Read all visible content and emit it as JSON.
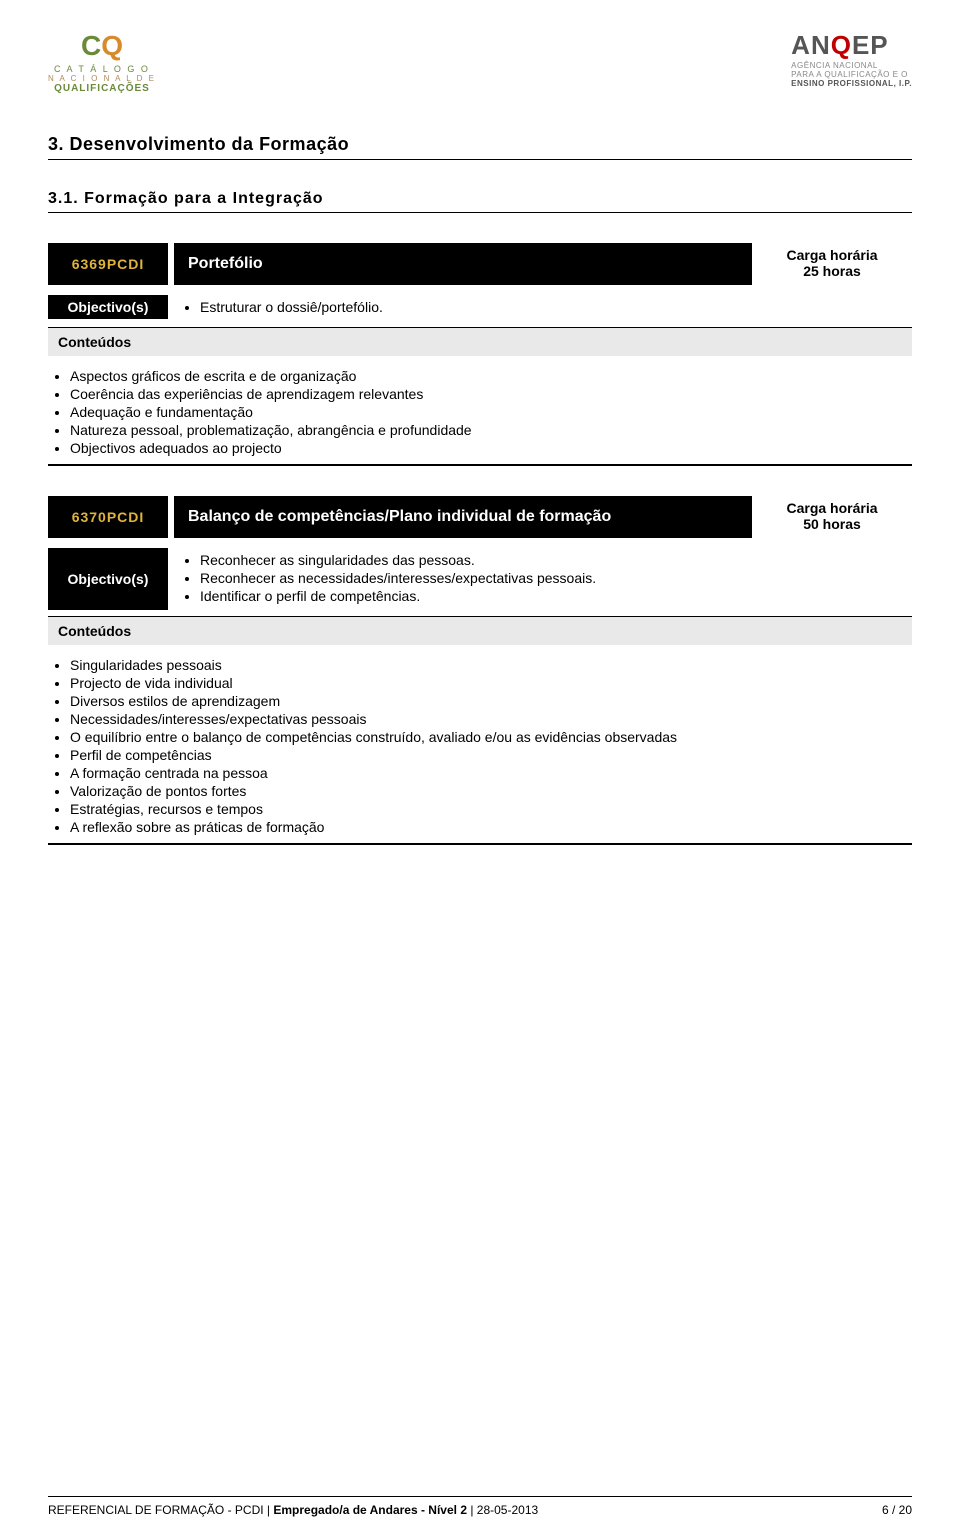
{
  "logos": {
    "left": {
      "glyph_c": "C",
      "glyph_q": "Q",
      "line1": "C A T Á L O G O",
      "line2": "N A C I O N A L   D E",
      "line3": "QUALIFICAÇÕES"
    },
    "right": {
      "brand_pre": "AN",
      "brand_mid": "Q",
      "brand_post": "EP",
      "sub1": "AGÊNCIA NACIONAL",
      "sub2": "PARA A QUALIFICAÇÃO E O",
      "sub3": "ENSINO PROFISSIONAL, I.P."
    }
  },
  "section": {
    "heading": "3. Desenvolvimento da Formação",
    "subheading": "3.1. Formação para a Integração"
  },
  "labels": {
    "objectivos": "Objectivo(s)",
    "conteudos": "Conteúdos",
    "carga": "Carga horária"
  },
  "modules": [
    {
      "code": "6369PCDI",
      "title": "Portefólio",
      "hours": "25 horas",
      "objectives": [
        "Estruturar o dossiê/portefólio."
      ],
      "contents": [
        "Aspectos gráficos de escrita e de organização",
        "Coerência das experiências de aprendizagem relevantes",
        "Adequação e fundamentação",
        "Natureza pessoal, problematização, abrangência e profundidade",
        "Objectivos adequados ao projecto"
      ]
    },
    {
      "code": "6370PCDI",
      "title": "Balanço de competências/Plano individual de formação",
      "hours": "50 horas",
      "objectives": [
        "Reconhecer as singularidades das pessoas.",
        "Reconhecer as necessidades/interesses/expectativas pessoais.",
        "Identificar o perfil de competências."
      ],
      "contents": [
        "Singularidades pessoais",
        "Projecto de vida individual",
        "Diversos estilos de aprendizagem",
        "Necessidades/interesses/expectativas pessoais",
        "O equilíbrio entre o balanço de competências construído, avaliado e/ou as evidências observadas",
        "Perfil de competências",
        "A formação centrada na pessoa",
        "Valorização de pontos fortes",
        "Estratégias, recursos e tempos",
        "A reflexão sobre as práticas de formação"
      ]
    }
  ],
  "footer": {
    "prefix": "REFERENCIAL DE FORMAÇÃO - PCDI | ",
    "bold": "Empregado/a de Andares - Nível 2",
    "suffix": " | 28-05-2013",
    "page": "6 / 20"
  },
  "colors": {
    "accent_code": "#e0b43a",
    "header_bg": "#000000",
    "gray_bar": "#e9e9e9",
    "logo_green": "#6a8a3a",
    "logo_orange": "#d88a2a",
    "anqep_red": "#c00000"
  }
}
